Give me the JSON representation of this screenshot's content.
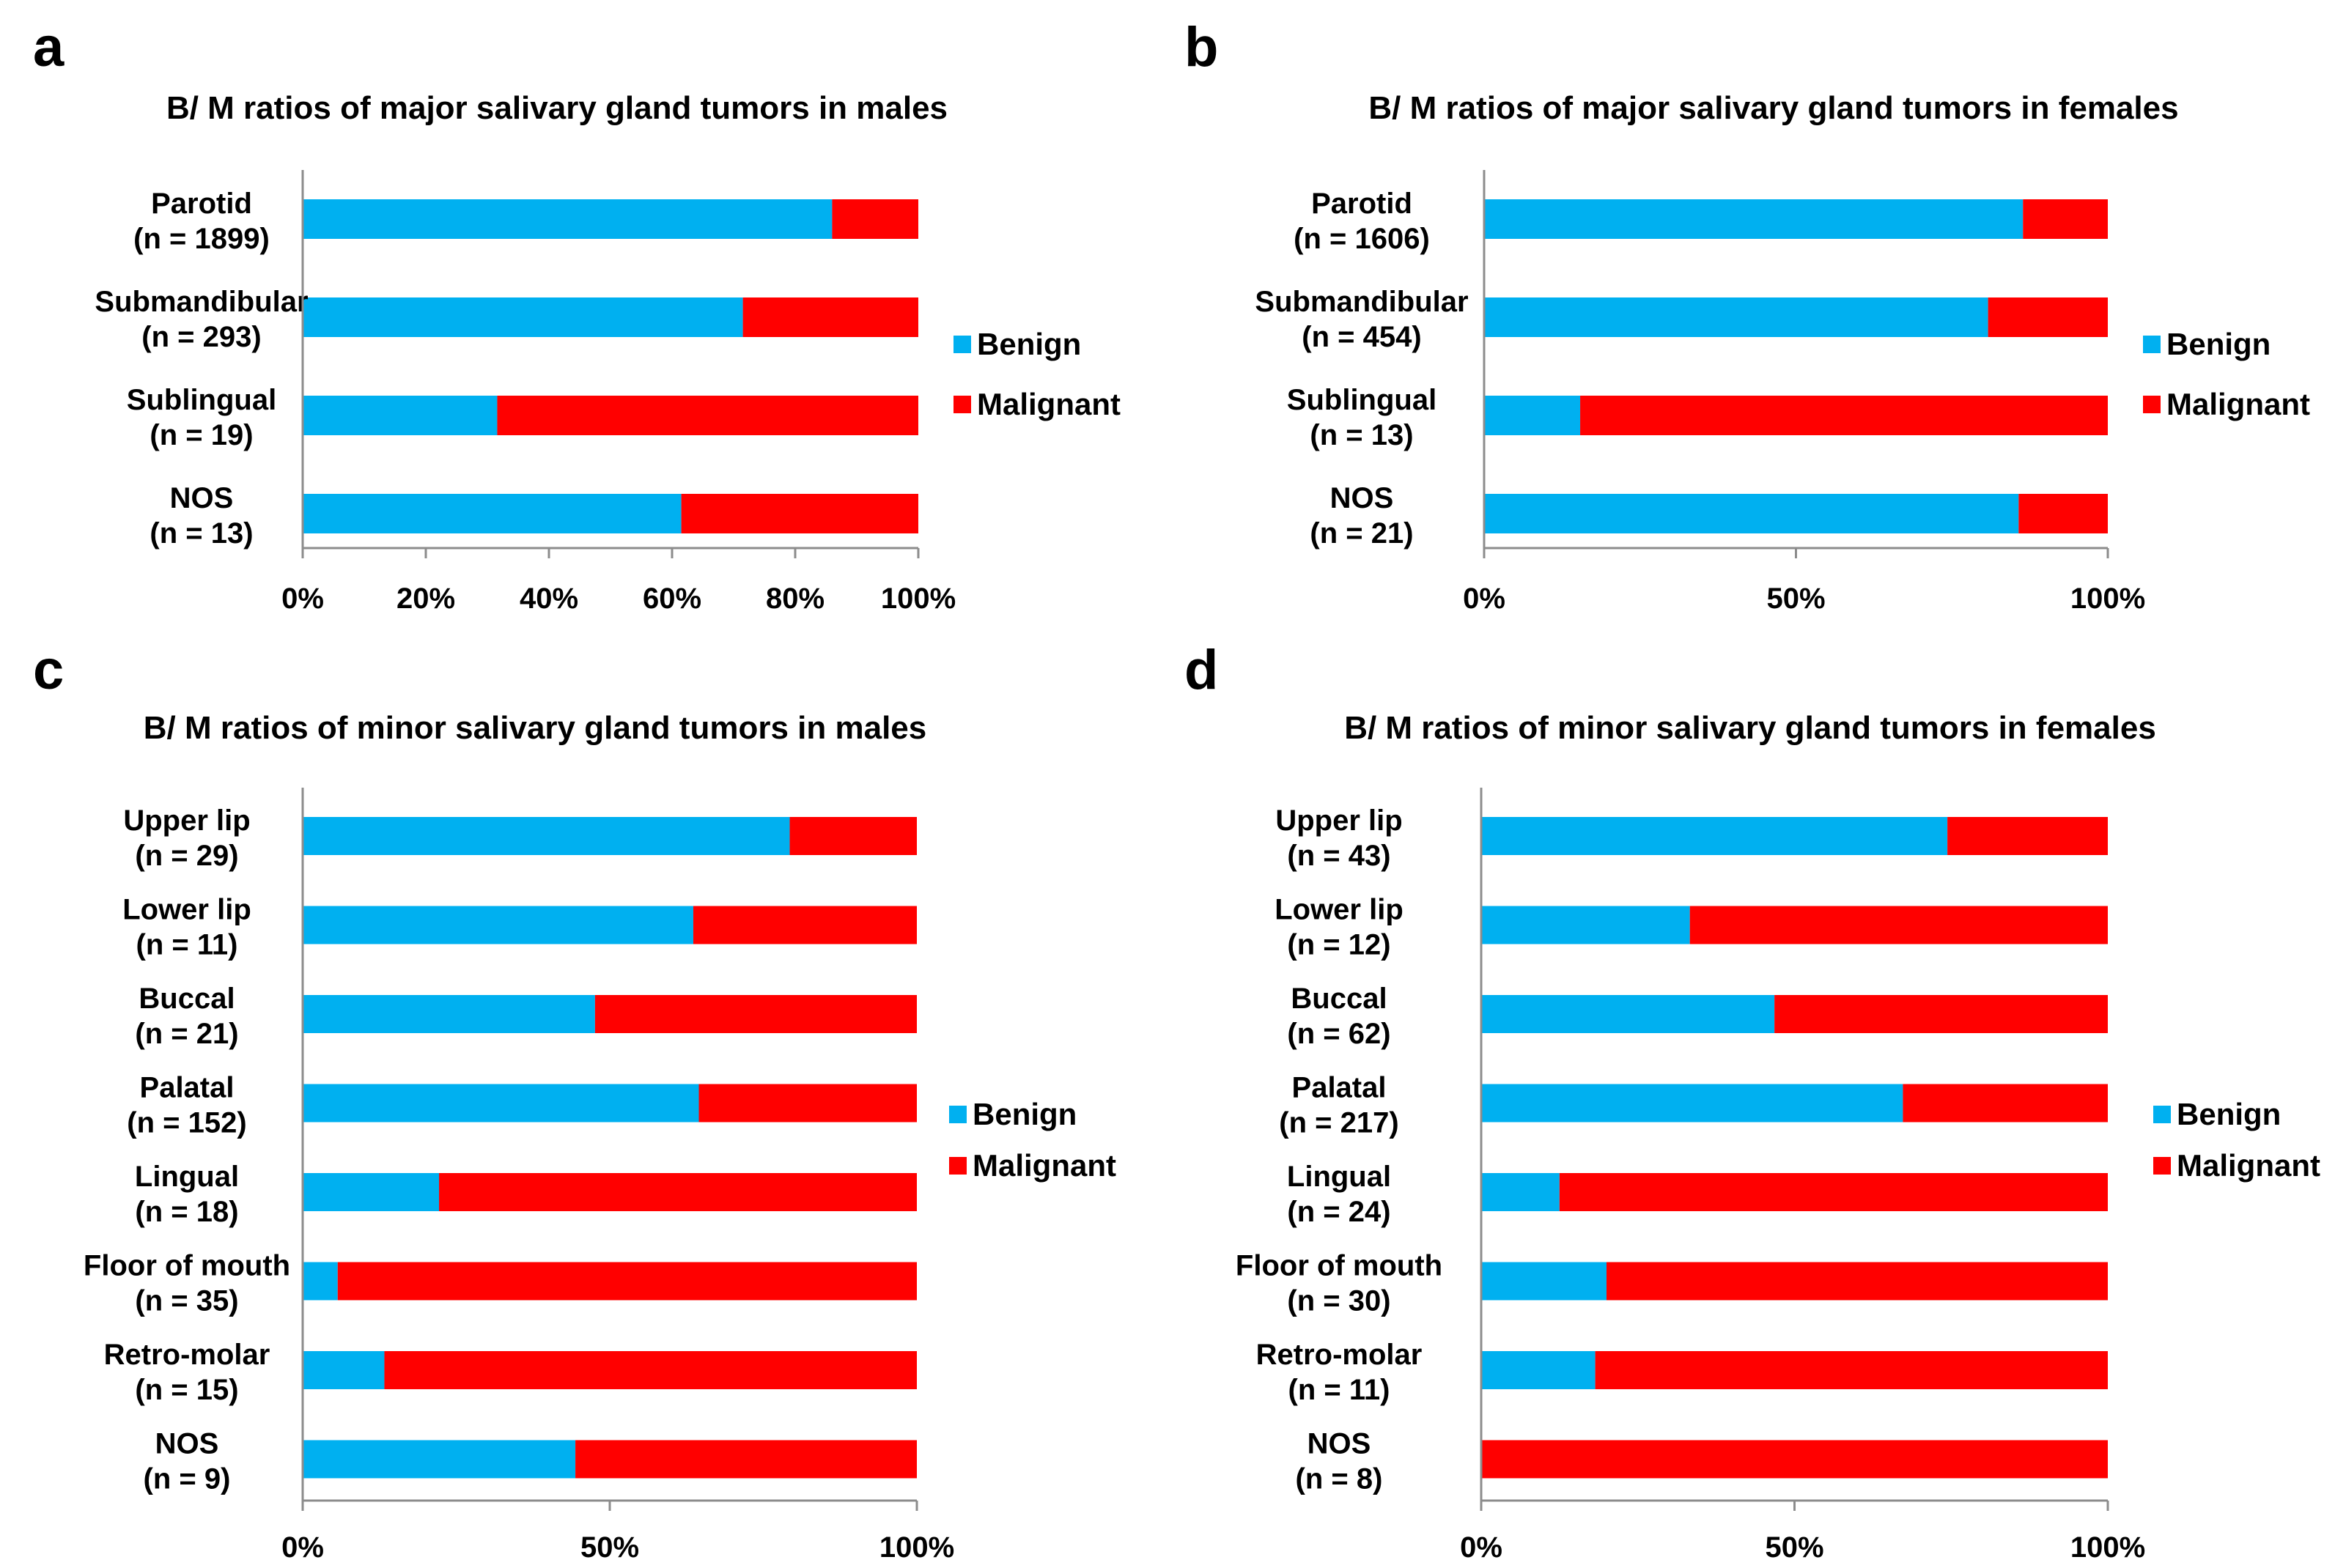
{
  "colors": {
    "benign": "#00b0f0",
    "malignant": "#ff0000"
  },
  "chart_data": [
    {
      "type": "bar",
      "orientation": "horizontal",
      "stacked": "percent",
      "panel": "a",
      "title": "B/ M ratios of major salivary gland tumors in males",
      "categories": [
        "Parotid",
        "Submandibular",
        "Sublingual",
        "NOS"
      ],
      "counts": [
        "(n = 1899)",
        "(n = 293)",
        "(n = 19)",
        "(n = 13)"
      ],
      "series": [
        {
          "name": "Benign",
          "values": [
            86,
            71.5,
            31.6,
            61.5
          ]
        },
        {
          "name": "Malignant",
          "values": [
            14,
            28.5,
            68.4,
            38.5
          ]
        }
      ],
      "xlim": [
        0,
        100
      ],
      "xticks": [
        "0%",
        "20%",
        "40%",
        "60%",
        "80%",
        "100%"
      ],
      "legend": [
        "Benign",
        "Malignant"
      ],
      "legend_position": "right"
    },
    {
      "type": "bar",
      "orientation": "horizontal",
      "stacked": "percent",
      "panel": "b",
      "title": "B/ M ratios of major salivary gland tumors in females",
      "categories": [
        "Parotid",
        "Submandibular",
        "Sublingual",
        "NOS"
      ],
      "counts": [
        "(n = 1606)",
        "(n = 454)",
        "(n = 13)",
        "(n = 21)"
      ],
      "series": [
        {
          "name": "Benign",
          "values": [
            86.4,
            80.8,
            15.4,
            85.7
          ]
        },
        {
          "name": "Malignant",
          "values": [
            13.6,
            19.2,
            84.6,
            14.3
          ]
        }
      ],
      "xlim": [
        0,
        100
      ],
      "xticks": [
        "0%",
        "50%",
        "100%"
      ],
      "legend": [
        "Benign",
        "Malignant"
      ],
      "legend_position": "right"
    },
    {
      "type": "bar",
      "orientation": "horizontal",
      "stacked": "percent",
      "panel": "c",
      "title": "B/ M ratios of minor salivary gland tumors in males",
      "categories": [
        "Upper lip",
        "Lower lip",
        "Buccal",
        "Palatal",
        "Lingual",
        "Floor of mouth",
        "Retro-molar",
        "NOS"
      ],
      "counts": [
        "(n = 29)",
        "(n = 11)",
        "(n = 21)",
        "(n = 152)",
        "(n = 18)",
        "(n = 35)",
        "(n = 15)",
        "(n = 9)"
      ],
      "series": [
        {
          "name": "Benign",
          "values": [
            79.3,
            63.6,
            47.6,
            64.5,
            22.2,
            5.7,
            13.3,
            44.4
          ]
        },
        {
          "name": "Malignant",
          "values": [
            20.7,
            36.4,
            52.4,
            35.5,
            77.8,
            94.3,
            86.7,
            55.6
          ]
        }
      ],
      "xlim": [
        0,
        100
      ],
      "xticks": [
        "0%",
        "50%",
        "100%"
      ],
      "legend": [
        "Benign",
        "Malignant"
      ],
      "legend_position": "right"
    },
    {
      "type": "bar",
      "orientation": "horizontal",
      "stacked": "percent",
      "panel": "d",
      "title": "B/ M ratios of minor salivary gland tumors in females",
      "categories": [
        "Upper lip",
        "Lower lip",
        "Buccal",
        "Palatal",
        "Lingual",
        "Floor of mouth",
        "Retro-molar",
        "NOS"
      ],
      "counts": [
        "(n = 43)",
        "(n = 12)",
        "(n = 62)",
        "(n = 217)",
        "(n = 24)",
        "(n = 30)",
        "(n = 11)",
        "(n = 8)"
      ],
      "series": [
        {
          "name": "Benign",
          "values": [
            74.4,
            33.3,
            46.8,
            67.3,
            12.5,
            20,
            18.2,
            0
          ]
        },
        {
          "name": "Malignant",
          "values": [
            25.6,
            66.7,
            53.2,
            32.7,
            87.5,
            80,
            81.8,
            100
          ]
        }
      ],
      "xlim": [
        0,
        100
      ],
      "xticks": [
        "0%",
        "50%",
        "100%"
      ],
      "legend": [
        "Benign",
        "Malignant"
      ],
      "legend_position": "right"
    }
  ]
}
